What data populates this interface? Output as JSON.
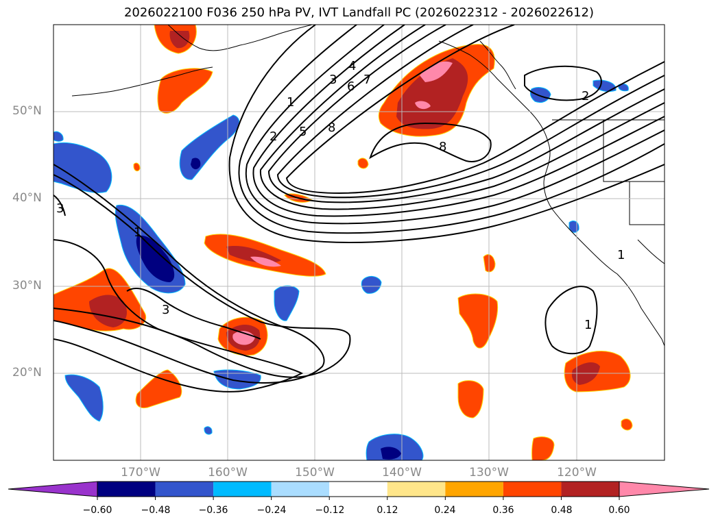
{
  "title": "2026022100 F036 250 hPa PV, IVT Landfall PC (2026022312 - 2026022612)",
  "lat_labels": [
    "50°N",
    "40°N",
    "30°N",
    "20°N"
  ],
  "lon_labels": [
    "170°W",
    "160°W",
    "150°W",
    "140°W",
    "130°W",
    "120°W"
  ],
  "colorbar": {
    "ticks": [
      "−0.60",
      "−0.48",
      "−0.36",
      "−0.24",
      "−0.12",
      "0.12",
      "0.24",
      "0.36",
      "0.48",
      "0.60"
    ],
    "colors": [
      "#9933cc",
      "#000080",
      "#3355cc",
      "#00bbff",
      "#aaddff",
      "#ffffff",
      "#ffe68a",
      "#ffa500",
      "#ff4500",
      "#b22222",
      "#ff88aa"
    ]
  },
  "contour_labels": [
    "1",
    "2",
    "3",
    "4",
    "5",
    "6",
    "7",
    "8",
    "8",
    "2",
    "3",
    "3",
    "1",
    "1",
    "1"
  ]
}
